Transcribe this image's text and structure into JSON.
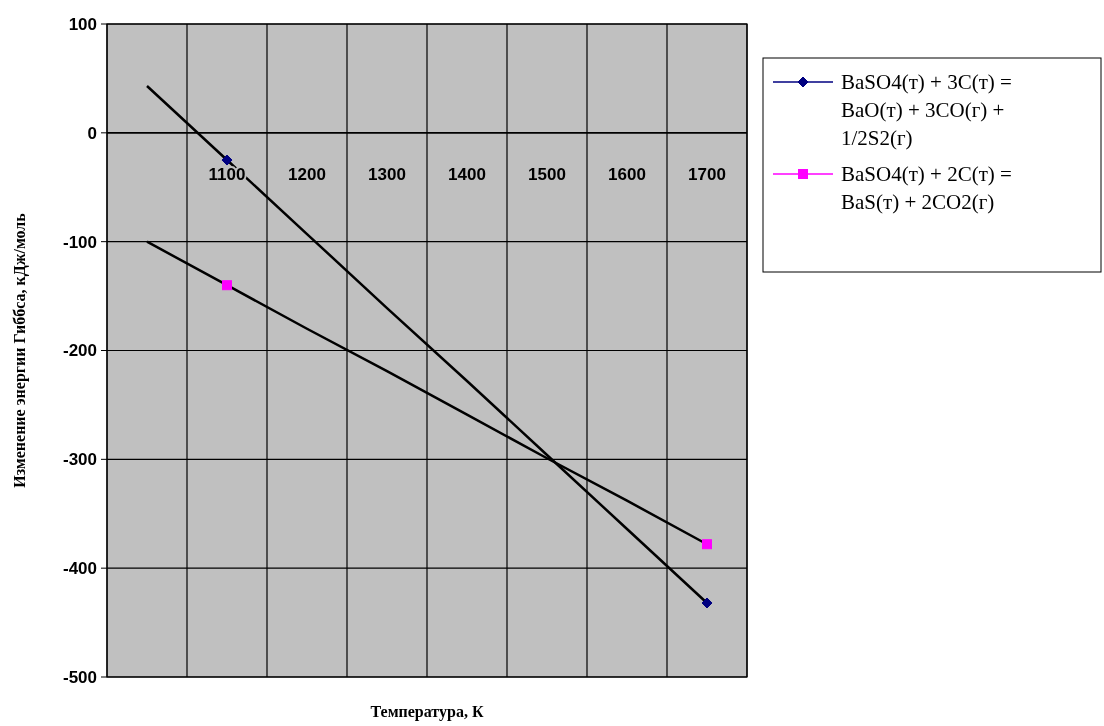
{
  "chart_data": {
    "type": "line",
    "xlabel": "Температура, К",
    "ylabel": "Изменение энергии Гиббса, кДж/моль",
    "categories": [
      null,
      "1100",
      "1200",
      "1300",
      "1400",
      "1500",
      "1600",
      "1700"
    ],
    "series": [
      {
        "name": "BaSO4(т) + 3C(т) = BaO(т) + 3CO(г) + 1/2S2(г)",
        "type": "scatter",
        "color": "#000080",
        "marker": "diamond",
        "values": [
          null,
          -25,
          null,
          null,
          null,
          null,
          null,
          -432
        ]
      },
      {
        "name": "BaSO4(т) + 2C(т) = BaS(т) + 2CO2(г)",
        "type": "scatter",
        "color": "#ff00ff",
        "marker": "square",
        "values": [
          null,
          -140,
          null,
          null,
          null,
          null,
          null,
          -378
        ]
      },
      {
        "color": "#000000",
        "marker": "none",
        "values": [
          43,
          -25,
          -93,
          -161,
          -228,
          -296,
          -364,
          -432
        ]
      },
      {
        "color": "#000000",
        "marker": "none",
        "values": [
          -100,
          -140,
          -180,
          -219,
          -259,
          -299,
          -338,
          -378
        ]
      }
    ],
    "ylim": [
      -500,
      100
    ],
    "yticks": [
      -500,
      -400,
      -300,
      -200,
      -100,
      0,
      100
    ],
    "grid": true,
    "legend": "top right"
  }
}
